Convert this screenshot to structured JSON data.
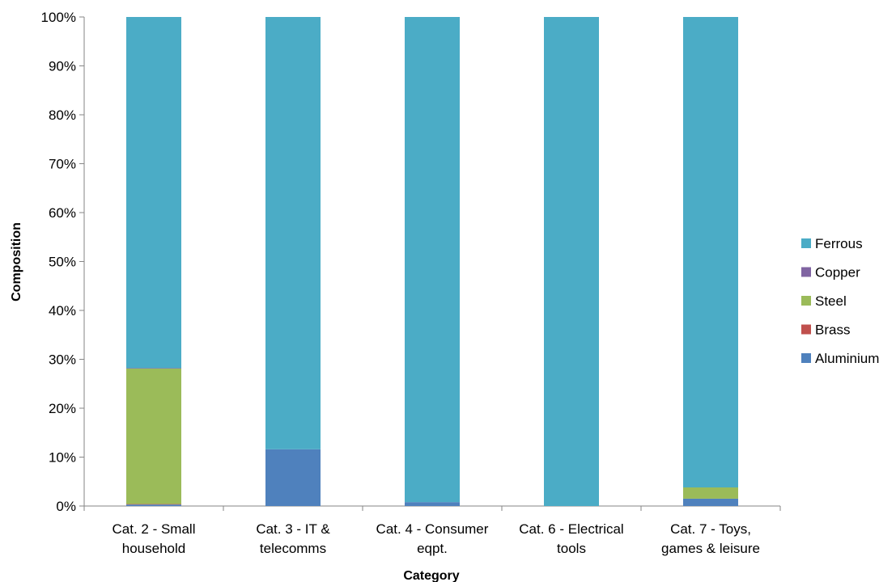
{
  "chart_data": {
    "type": "bar",
    "stacked": true,
    "percent": true,
    "categories": [
      "Cat. 2 - Small household",
      "Cat. 3 - IT & telecomms",
      "Cat. 4 - Consumer eqpt.",
      "Cat. 6 - Electrical tools",
      "Cat. 7 - Toys, games & leisure"
    ],
    "category_lines": [
      [
        "Cat. 2 - Small",
        "household"
      ],
      [
        "Cat. 3 - IT &",
        "telecomms"
      ],
      [
        "Cat. 4 - Consumer",
        "eqpt."
      ],
      [
        "Cat. 6 - Electrical",
        "tools"
      ],
      [
        "Cat. 7 - Toys,",
        "games & leisure"
      ]
    ],
    "series": [
      {
        "name": "Aluminium",
        "color": "#4F81BD",
        "values": [
          0.3,
          11.6,
          0.8,
          0.0,
          1.5
        ]
      },
      {
        "name": "Brass",
        "color": "#C0504D",
        "values": [
          0.1,
          0.0,
          0.0,
          0.0,
          0.0
        ]
      },
      {
        "name": "Steel",
        "color": "#9BBB59",
        "values": [
          27.7,
          0.0,
          0.0,
          0.0,
          2.3
        ]
      },
      {
        "name": "Copper",
        "color": "#8064A2",
        "values": [
          0.1,
          0.0,
          0.0,
          0.0,
          0.0
        ]
      },
      {
        "name": "Ferrous",
        "color": "#4BACC6",
        "values": [
          71.8,
          88.4,
          99.2,
          100.0,
          96.2
        ]
      }
    ],
    "legend_order": [
      "Ferrous",
      "Copper",
      "Steel",
      "Brass",
      "Aluminium"
    ],
    "yticks": [
      "0%",
      "10%",
      "20%",
      "30%",
      "40%",
      "50%",
      "60%",
      "70%",
      "80%",
      "90%",
      "100%"
    ],
    "ylim": [
      0,
      100
    ],
    "xlabel": "Category",
    "ylabel": "Composition",
    "grid": false,
    "legend_position": "right"
  }
}
